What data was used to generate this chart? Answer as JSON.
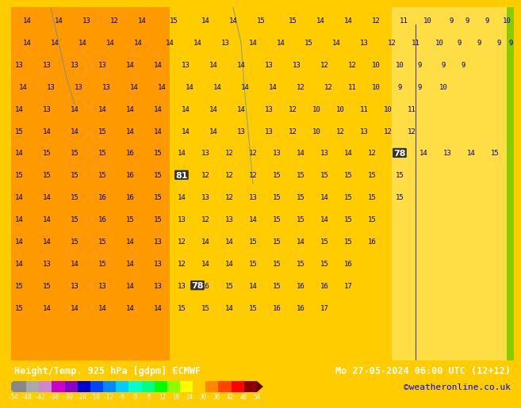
{
  "title_left": "Height/Temp. 925 hPa [gdpm] ECMWF",
  "title_right": "Mo 27-05-2024 06:00 UTC (12+12)",
  "credit": "©weatheronline.co.uk",
  "colorbar_values": [
    -54,
    -48,
    -42,
    -38,
    -30,
    -24,
    -18,
    -12,
    -6,
    0,
    6,
    12,
    18,
    24,
    30,
    36,
    42,
    48,
    54
  ],
  "colorbar_colors": [
    "#808080",
    "#a0a0a0",
    "#c0c0c0",
    "#ff00ff",
    "#cc00cc",
    "#9900cc",
    "#0000ff",
    "#0055ff",
    "#00aaff",
    "#00ffff",
    "#00ffaa",
    "#00ff55",
    "#00ff00",
    "#aaff00",
    "#ffff00",
    "#ffaa00",
    "#ff5500",
    "#ff0000",
    "#990000"
  ],
  "bg_color": "#ffcc00",
  "map_number_color": "#000080",
  "contour_color": "#0000aa",
  "bottom_bar_height": 0.09,
  "title_fontsize": 9,
  "credit_color": "#0000ff",
  "label_fontsize": 7
}
